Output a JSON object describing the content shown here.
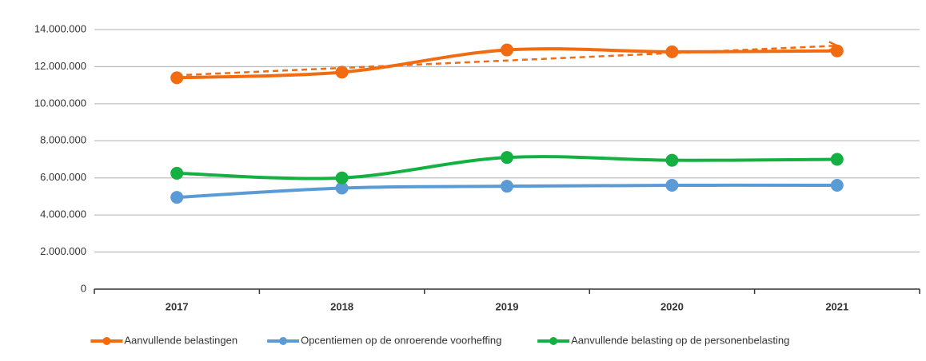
{
  "chart_data": {
    "type": "line",
    "categories": [
      "2017",
      "2018",
      "2019",
      "2020",
      "2021"
    ],
    "series": [
      {
        "name": "Aanvullende belastingen",
        "color": "#f26b10",
        "values": [
          11400000,
          11700000,
          12900000,
          12800000,
          12850000
        ],
        "trendline": true
      },
      {
        "name": "Opcentiemen op de onroerende voorheffing",
        "color": "#5b9bd5",
        "values": [
          4950000,
          5450000,
          5550000,
          5600000,
          5600000
        ]
      },
      {
        "name": "Aanvullende belasting op de personenbelasting",
        "color": "#14b042",
        "values": [
          6250000,
          6000000,
          7100000,
          6950000,
          7000000
        ]
      }
    ],
    "ylim": [
      0,
      14000000
    ],
    "yticks": [
      0,
      {
        "value": 2000000,
        "label": "2.000.000"
      },
      {
        "value": 4000000,
        "label": "4.000.000"
      },
      {
        "value": 6000000,
        "label": "6.000.000"
      },
      {
        "value": 8000000,
        "label": "8.000.000"
      },
      {
        "value": 10000000,
        "label": "10.000.000"
      },
      {
        "value": 12000000,
        "label": "12.000.000"
      },
      {
        "value": 14000000,
        "label": "14.000.000"
      }
    ],
    "grid": true,
    "legend": "bottom"
  }
}
